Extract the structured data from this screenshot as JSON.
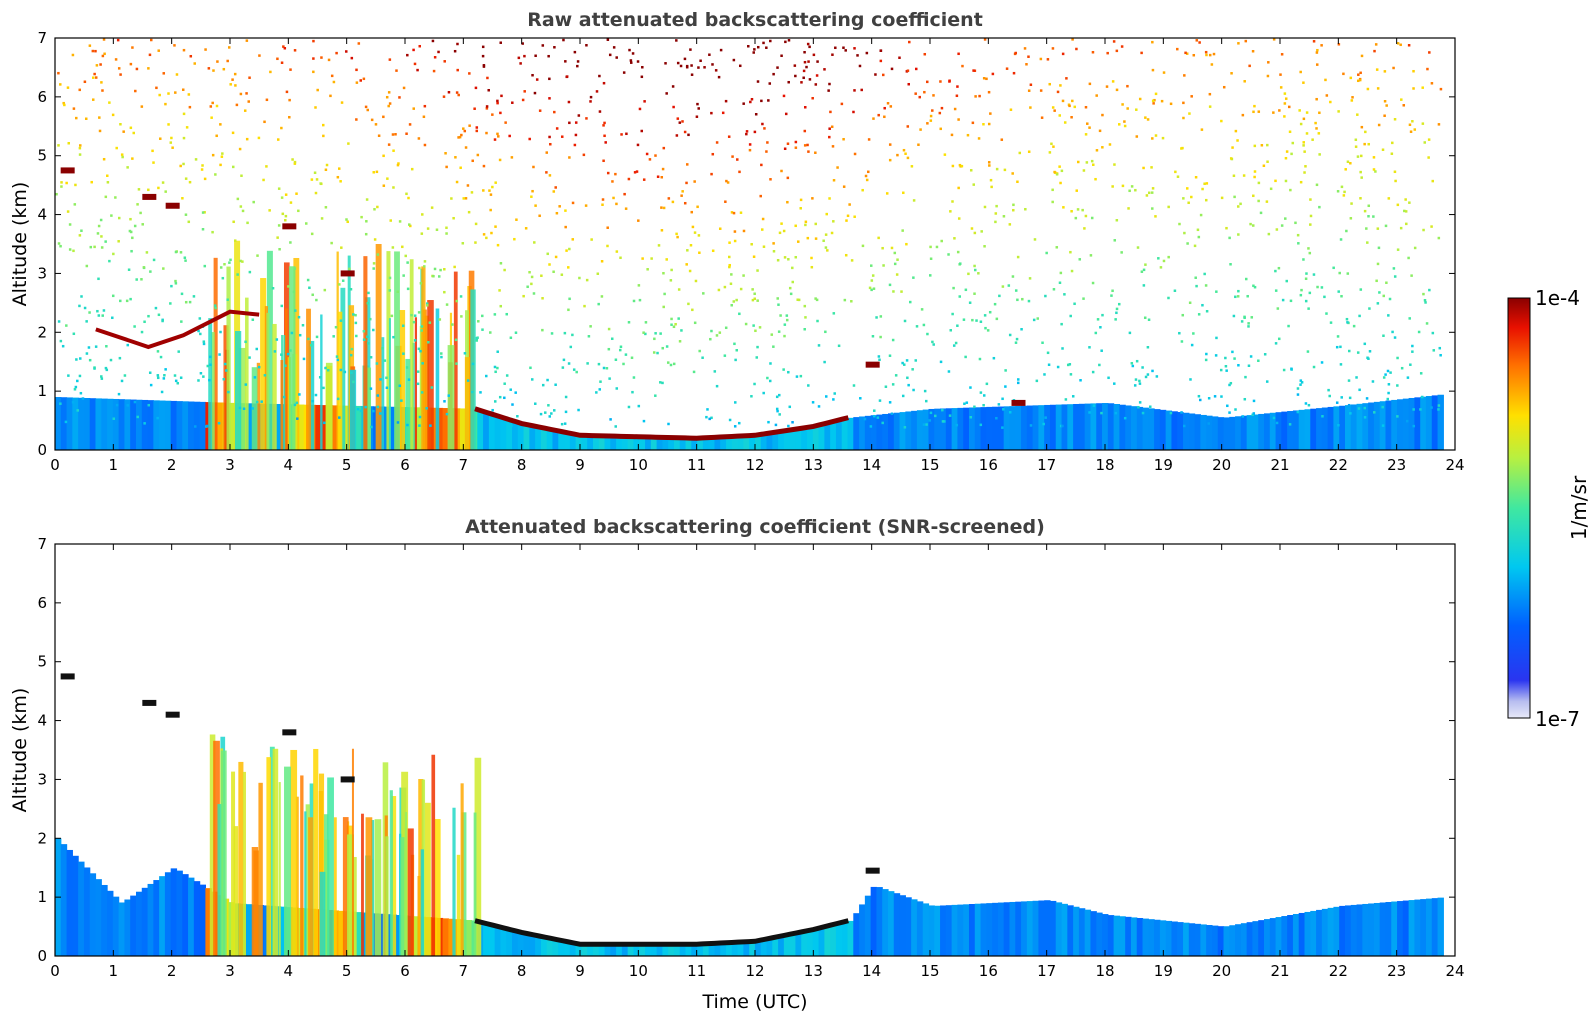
{
  "chart_data": [
    {
      "type": "heatmap",
      "title": "Raw attenuated backscattering coefficient",
      "xlabel": "",
      "ylabel": "Altitude (km)",
      "xlim": [
        0,
        24
      ],
      "ylim": [
        0,
        7
      ],
      "x_ticks": [
        "0",
        "1",
        "2",
        "3",
        "4",
        "5",
        "6",
        "7",
        "8",
        "9",
        "10",
        "11",
        "12",
        "13",
        "14",
        "15",
        "16",
        "17",
        "18",
        "19",
        "20",
        "21",
        "22",
        "23",
        "24"
      ],
      "y_ticks": [
        "0",
        "1",
        "2",
        "3",
        "4",
        "5",
        "6",
        "7"
      ],
      "screening": "raw",
      "features": {
        "boundary_layer_top": [
          [
            0,
            0.9
          ],
          [
            3,
            0.8
          ],
          [
            7.2,
            0.7
          ],
          [
            8,
            0.45
          ],
          [
            9,
            0.25
          ],
          [
            11,
            0.2
          ],
          [
            12,
            0.25
          ],
          [
            13,
            0.4
          ],
          [
            13.6,
            0.55
          ],
          [
            15,
            0.7
          ],
          [
            18,
            0.8
          ],
          [
            20,
            0.55
          ],
          [
            22,
            0.75
          ],
          [
            23.8,
            0.95
          ]
        ],
        "aerosol_layer_heights": [
          [
            0.7,
            2.05
          ],
          [
            1.6,
            1.75
          ],
          [
            2.2,
            1.95
          ],
          [
            3,
            2.35
          ],
          [
            3.5,
            2.3
          ]
        ],
        "elevated_cloud_layers": [
          [
            0.2,
            4.75
          ],
          [
            1.6,
            4.3
          ],
          [
            2,
            4.15
          ],
          [
            4,
            3.8
          ],
          [
            5,
            3.0
          ],
          [
            14,
            1.45
          ],
          [
            16.5,
            0.8
          ]
        ],
        "data_end_hour": 23.8
      }
    },
    {
      "type": "heatmap",
      "title": "Attenuated backscattering coefficient (SNR-screened)",
      "xlabel": "Time (UTC)",
      "ylabel": "Altitude (km)",
      "xlim": [
        0,
        24
      ],
      "ylim": [
        0,
        7
      ],
      "x_ticks": [
        "0",
        "1",
        "2",
        "3",
        "4",
        "5",
        "6",
        "7",
        "8",
        "9",
        "10",
        "11",
        "12",
        "13",
        "14",
        "15",
        "16",
        "17",
        "18",
        "19",
        "20",
        "21",
        "22",
        "23",
        "24"
      ],
      "y_ticks": [
        "0",
        "1",
        "2",
        "3",
        "4",
        "5",
        "6",
        "7"
      ],
      "screening": "SNR",
      "features": {
        "boundary_layer_top": [
          [
            0,
            2.0
          ],
          [
            1.1,
            0.9
          ],
          [
            2,
            1.5
          ],
          [
            3,
            0.9
          ],
          [
            7.2,
            0.6
          ],
          [
            8,
            0.4
          ],
          [
            9,
            0.2
          ],
          [
            11,
            0.2
          ],
          [
            12,
            0.25
          ],
          [
            13,
            0.45
          ],
          [
            13.6,
            0.6
          ],
          [
            14,
            1.2
          ],
          [
            15,
            0.85
          ],
          [
            17,
            0.95
          ],
          [
            18,
            0.7
          ],
          [
            20,
            0.5
          ],
          [
            22,
            0.85
          ],
          [
            23.8,
            1.0
          ]
        ],
        "elevated_cloud_layers": [
          [
            0.2,
            4.75
          ],
          [
            1.6,
            4.3
          ],
          [
            2,
            4.1
          ],
          [
            4,
            3.8
          ],
          [
            5,
            3.0
          ],
          [
            14,
            1.45
          ]
        ]
      }
    }
  ],
  "colorbar": {
    "label": "1/m/sr",
    "max_label": "1e-4",
    "min_label": "1e-7",
    "scale": "log",
    "colormap": "jet",
    "range": [
      1e-07,
      0.0001
    ]
  }
}
